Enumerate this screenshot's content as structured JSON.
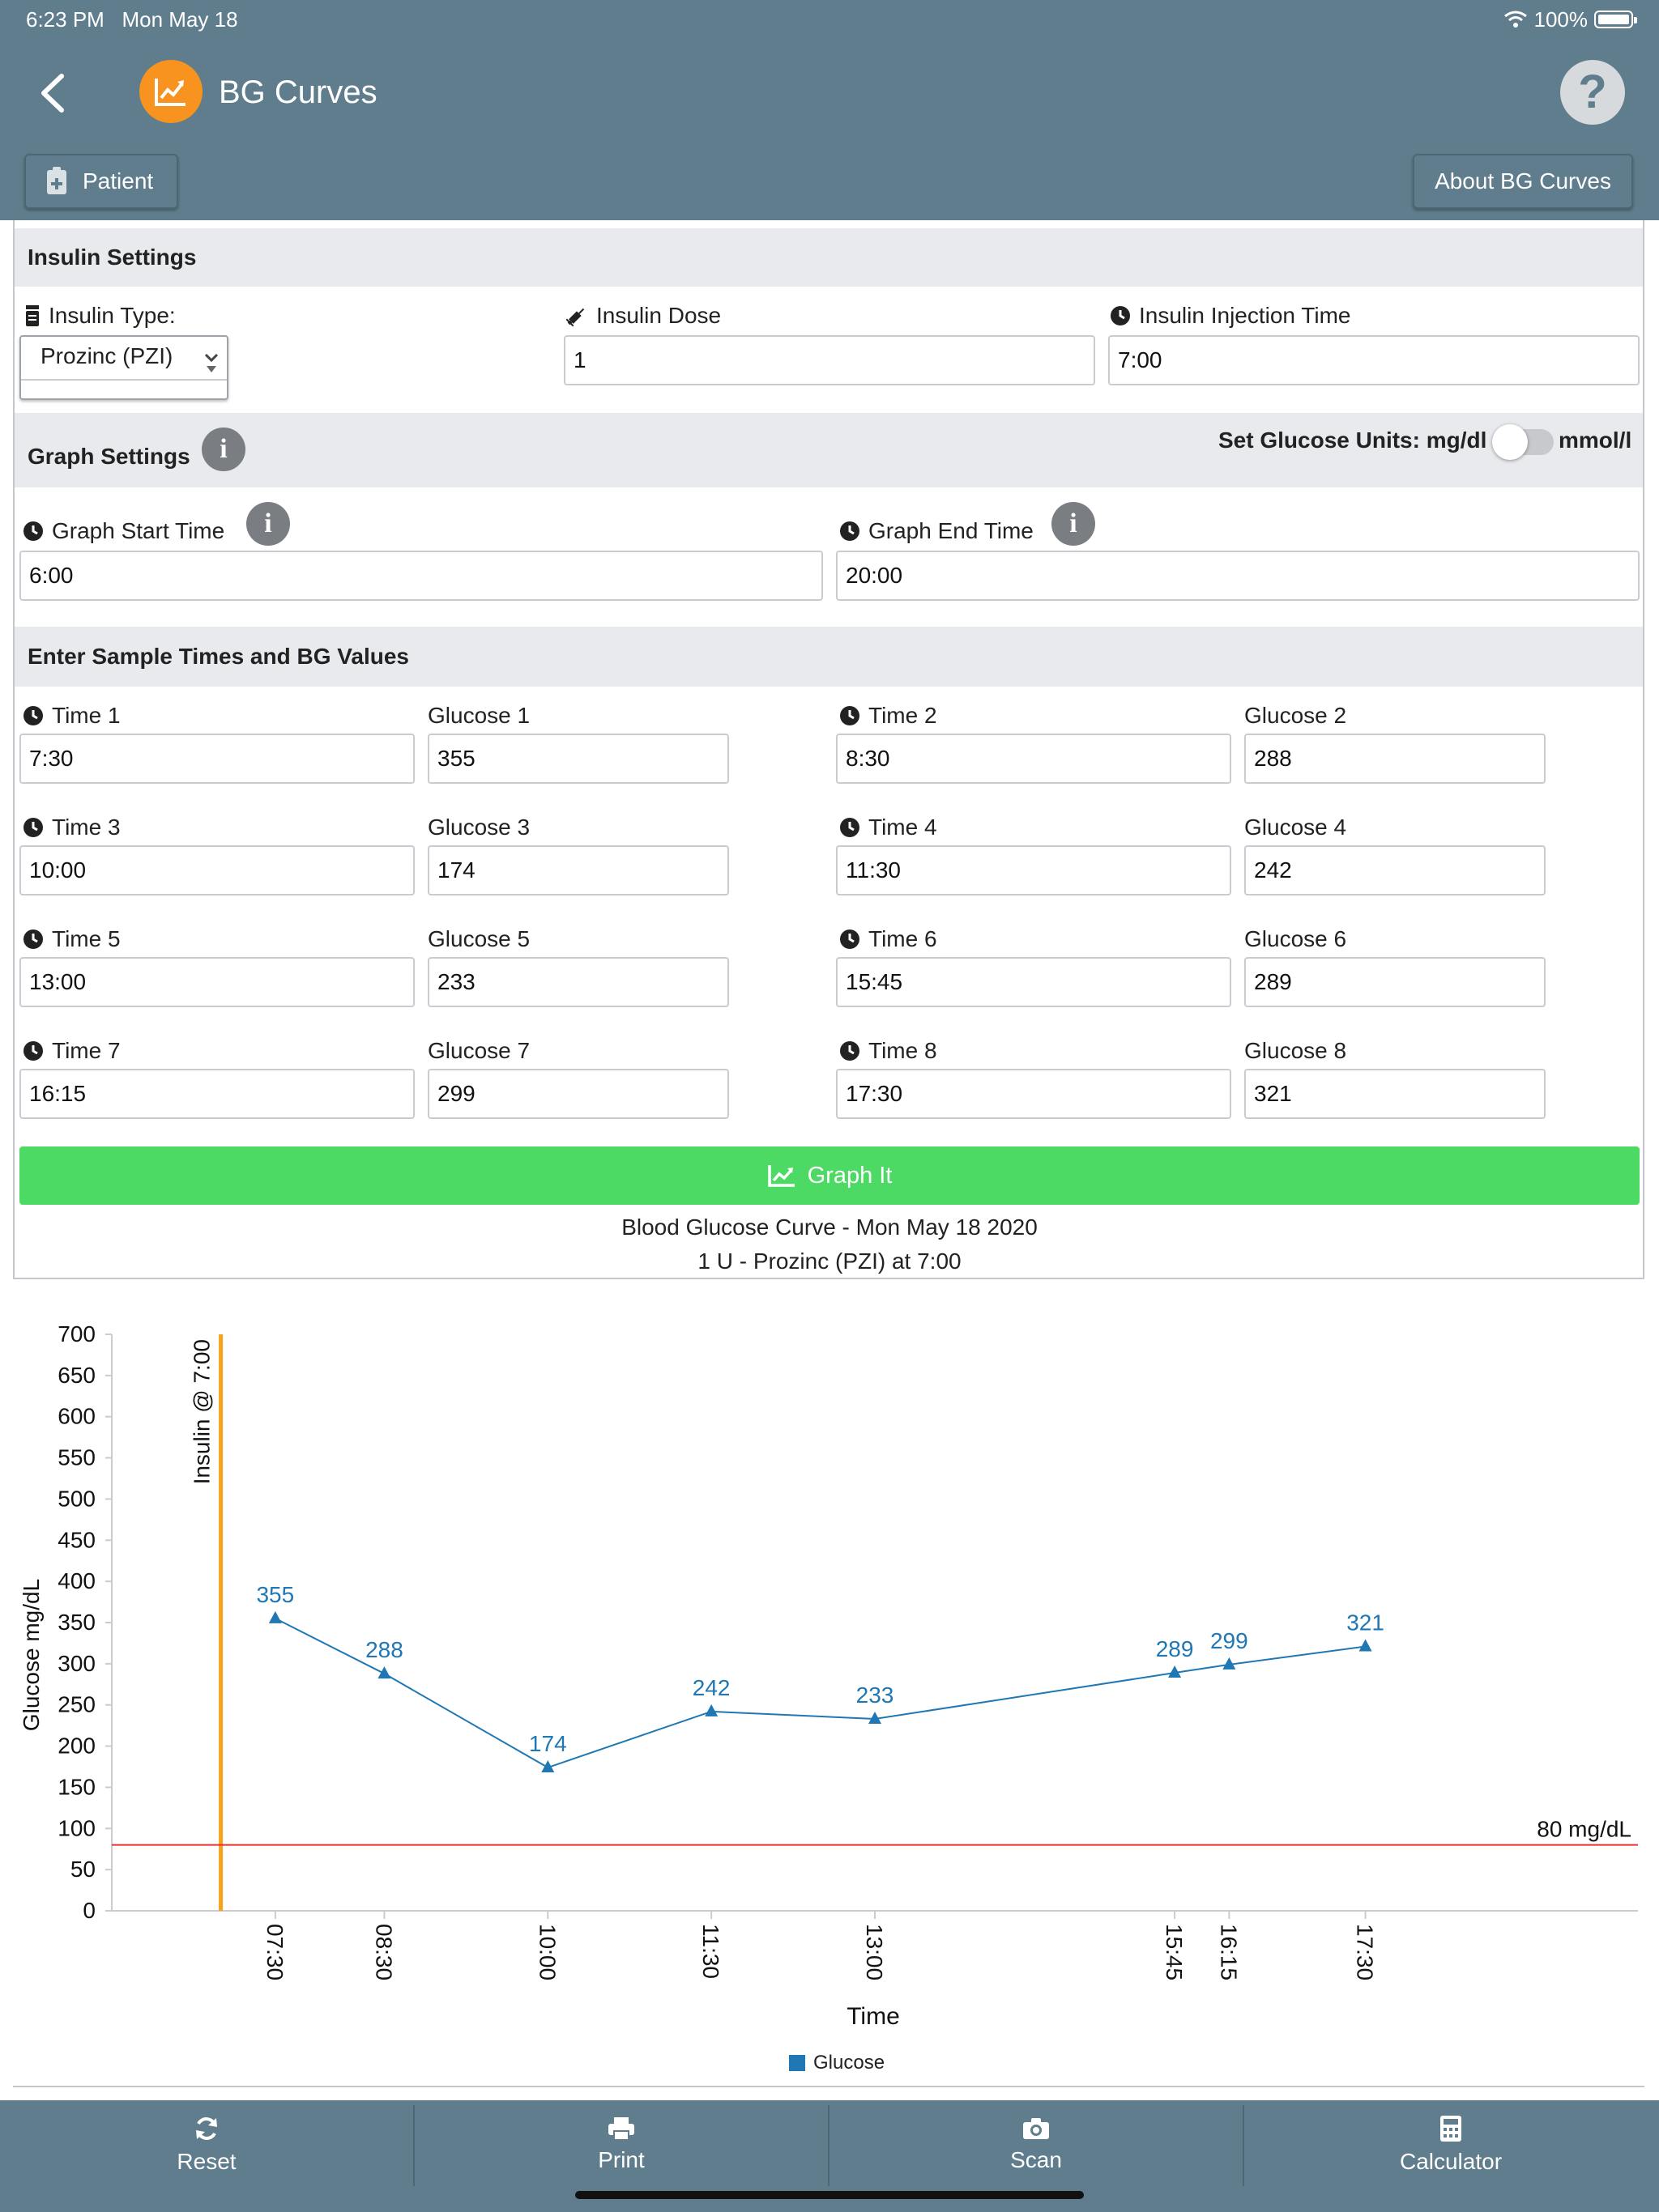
{
  "status": {
    "time": "6:23 PM",
    "date": "Mon May 18",
    "battery": "100%"
  },
  "header": {
    "title": "BG Curves",
    "help": "?",
    "patient_button": "Patient",
    "about_button": "About BG Curves"
  },
  "insulin": {
    "section": "Insulin Settings",
    "type_label": "Insulin Type:",
    "type_value": "Prozinc (PZI)",
    "dose_label": "Insulin Dose",
    "dose_value": "1",
    "time_label": "Insulin Injection Time",
    "time_value": "7:00"
  },
  "graph_settings": {
    "section": "Graph Settings",
    "units_label": "Set Glucose Units: mg/dl",
    "units_alt": "mmol/l",
    "start_label": "Graph Start Time",
    "start_value": "6:00",
    "end_label": "Graph End Time",
    "end_value": "20:00"
  },
  "samples": {
    "section": "Enter Sample Times and BG Values",
    "items": [
      {
        "time_label": "Time 1",
        "time": "7:30",
        "glucose_label": "Glucose 1",
        "glucose": "355"
      },
      {
        "time_label": "Time 2",
        "time": "8:30",
        "glucose_label": "Glucose 2",
        "glucose": "288"
      },
      {
        "time_label": "Time 3",
        "time": "10:00",
        "glucose_label": "Glucose 3",
        "glucose": "174"
      },
      {
        "time_label": "Time 4",
        "time": "11:30",
        "glucose_label": "Glucose 4",
        "glucose": "242"
      },
      {
        "time_label": "Time 5",
        "time": "13:00",
        "glucose_label": "Glucose 5",
        "glucose": "233"
      },
      {
        "time_label": "Time 6",
        "time": "15:45",
        "glucose_label": "Glucose 6",
        "glucose": "289"
      },
      {
        "time_label": "Time 7",
        "time": "16:15",
        "glucose_label": "Glucose 7",
        "glucose": "299"
      },
      {
        "time_label": "Time 8",
        "time": "17:30",
        "glucose_label": "Glucose 8",
        "glucose": "321"
      }
    ]
  },
  "graph_button": "Graph It",
  "caption": {
    "line1": "Blood Glucose Curve - Mon May 18 2020",
    "line2": "1 U - Prozinc (PZI) at 7:00"
  },
  "chart_data": {
    "type": "line",
    "title": "Blood Glucose Curve - Mon May 18 2020",
    "subtitle": "1 U - Prozinc (PZI) at 7:00",
    "xlabel": "Time",
    "ylabel": "Glucose mg/dL",
    "xlim": [
      "6:00",
      "20:00"
    ],
    "ylim": [
      0,
      700
    ],
    "yticks": [
      0,
      50,
      100,
      150,
      200,
      250,
      300,
      350,
      400,
      450,
      500,
      550,
      600,
      650,
      700
    ],
    "x": [
      "07:30",
      "08:30",
      "10:00",
      "11:30",
      "13:00",
      "15:45",
      "16:15",
      "17:30"
    ],
    "series": [
      {
        "name": "Glucose",
        "values": [
          355,
          288,
          174,
          242,
          233,
          289,
          299,
          321
        ],
        "color": "#1f77b4"
      }
    ],
    "annotations": [
      {
        "type": "vertical-line",
        "x": "7:00",
        "label": "Insulin @ 7:00",
        "color": "#f7a21b"
      },
      {
        "type": "horizontal-line",
        "y": 80,
        "label": "80 mg/dL",
        "color": "#e8302f"
      }
    ],
    "legend": "bottom",
    "grid": false
  },
  "tabs": [
    {
      "label": "Reset",
      "icon": "refresh-icon"
    },
    {
      "label": "Print",
      "icon": "printer-icon"
    },
    {
      "label": "Scan",
      "icon": "camera-icon"
    },
    {
      "label": "Calculator",
      "icon": "calculator-icon"
    }
  ],
  "colors": {
    "header": "#5f7d8c",
    "accent": "#f7931e",
    "button": "#4cd964",
    "series": "#1f77b4"
  }
}
